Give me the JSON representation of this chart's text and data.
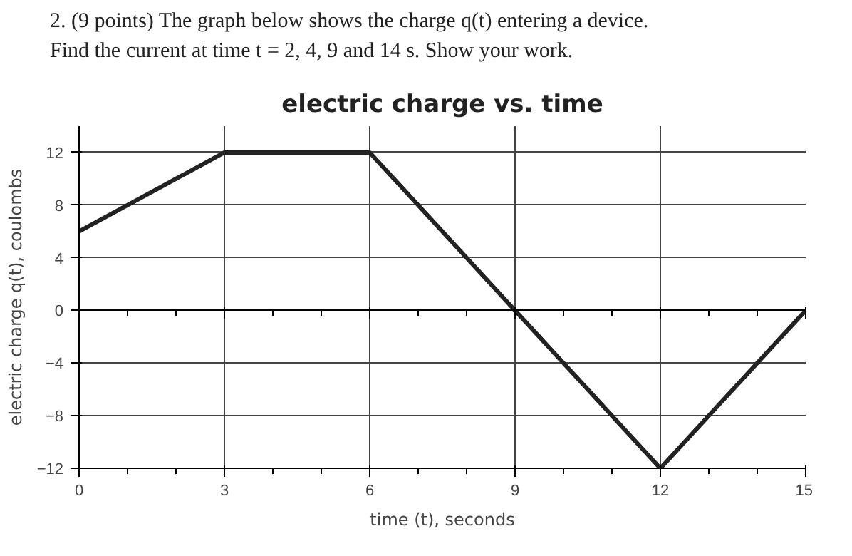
{
  "chart_data": {
    "type": "line",
    "title": "electric charge vs. time",
    "xlabel": "time (t), seconds",
    "ylabel": "electric charge q(t), coulombs",
    "annotations": [
      "2. (9 points) The graph below shows the charge q(t) entering a device.",
      "Find the current at time t = 2, 4, 9 and 14 s. Show your work."
    ],
    "x": [
      0,
      3,
      6,
      9,
      12,
      15
    ],
    "series": [
      {
        "color": "#222222",
        "values": [
          6,
          12,
          12,
          0,
          -12,
          0
        ]
      }
    ],
    "xlim": [
      0,
      15
    ],
    "ylim": [
      -12,
      14
    ],
    "xticks": [
      0,
      3,
      6,
      9,
      12,
      15
    ],
    "yticks": [
      -12,
      -8,
      -4,
      0,
      4,
      8,
      12
    ],
    "grid": true,
    "marker": "none",
    "line_style": "solid"
  }
}
